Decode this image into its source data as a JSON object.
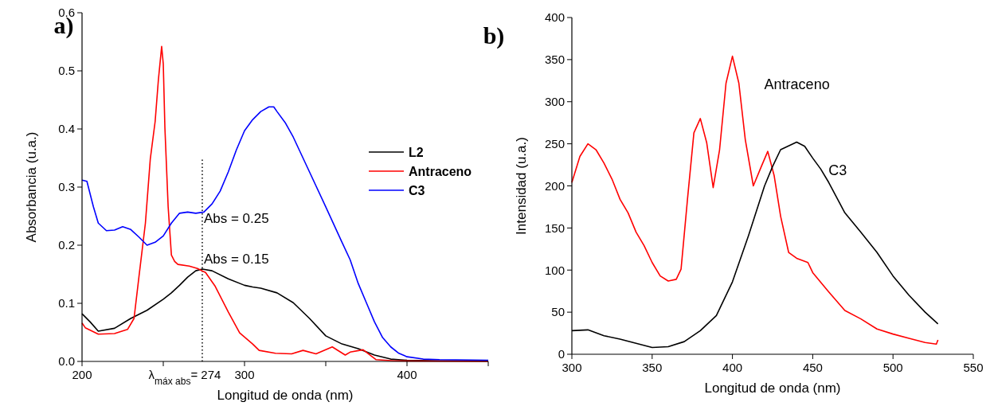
{
  "chart_data": [
    {
      "type": "line",
      "title": "a)",
      "xlabel": "Longitud de onda (nm)",
      "ylabel": "Absorbancia (u.a.)",
      "xlim": [
        200,
        450
      ],
      "xticks": [
        200,
        {
          "value": 250,
          "label": null
        },
        300,
        {
          "value": 350,
          "label": null
        },
        400,
        {
          "value": 450,
          "label": null
        }
      ],
      "ylim": [
        0,
        0.6
      ],
      "yticks": [
        {
          "value": 0,
          "label": "0.0"
        },
        0.1,
        0.2,
        0.3,
        0.4,
        0.5,
        0.6
      ],
      "grid": false,
      "legend": "right",
      "line_style": "solid",
      "ref_lines": [
        {
          "axis": "x",
          "value": 274,
          "label": "λ$_{máx abs}$= 274",
          "line_style": "dotted",
          "color": "#000000"
        }
      ],
      "annotations": [
        {
          "text": "Abs = 0.25",
          "x": 274,
          "y": 0.25
        },
        {
          "text": "Abs = 0.15",
          "x": 274,
          "y": 0.18
        }
      ],
      "series": [
        {
          "name": "L2",
          "color": "#000000",
          "x": [
            200,
            205,
            210,
            220,
            230,
            240,
            250,
            255,
            260,
            265,
            270,
            274,
            280,
            290,
            300,
            305,
            310,
            320,
            330,
            340,
            350,
            360,
            370,
            380,
            390,
            400,
            420,
            450
          ],
          "values": [
            0.082,
            0.068,
            0.052,
            0.057,
            0.074,
            0.088,
            0.107,
            0.118,
            0.131,
            0.145,
            0.156,
            0.159,
            0.156,
            0.142,
            0.131,
            0.128,
            0.126,
            0.118,
            0.101,
            0.074,
            0.044,
            0.03,
            0.022,
            0.011,
            0.004,
            0.002,
            0.001,
            0.001
          ]
        },
        {
          "name": "Antraceno",
          "color": "#ff0000",
          "x": [
            200,
            202,
            210,
            220,
            228,
            232,
            235,
            239,
            242,
            245,
            247,
            249,
            250,
            251,
            253,
            255,
            257,
            259,
            266,
            271,
            276,
            282,
            290,
            297,
            305,
            309,
            319,
            329,
            336,
            344,
            354,
            362,
            365,
            373,
            381,
            392,
            450
          ],
          "values": [
            0.066,
            0.058,
            0.047,
            0.048,
            0.055,
            0.074,
            0.145,
            0.238,
            0.348,
            0.413,
            0.485,
            0.542,
            0.512,
            0.402,
            0.266,
            0.183,
            0.172,
            0.167,
            0.164,
            0.16,
            0.153,
            0.129,
            0.085,
            0.049,
            0.03,
            0.019,
            0.014,
            0.013,
            0.019,
            0.013,
            0.025,
            0.011,
            0.016,
            0.02,
            0.003,
            0.001,
            0
          ]
        },
        {
          "name": "C3",
          "color": "#0000ff",
          "x": [
            200,
            203,
            207,
            210,
            215,
            220,
            225,
            230,
            235,
            240,
            245,
            250,
            255,
            260,
            265,
            270,
            275,
            280,
            285,
            290,
            295,
            300,
            305,
            310,
            315,
            318,
            320,
            325,
            330,
            340,
            350,
            360,
            365,
            370,
            375,
            380,
            385,
            390,
            395,
            400,
            410,
            420,
            450
          ],
          "values": [
            0.312,
            0.31,
            0.266,
            0.238,
            0.225,
            0.226,
            0.232,
            0.227,
            0.214,
            0.2,
            0.205,
            0.216,
            0.238,
            0.255,
            0.257,
            0.255,
            0.257,
            0.271,
            0.293,
            0.326,
            0.364,
            0.397,
            0.416,
            0.43,
            0.438,
            0.438,
            0.43,
            0.411,
            0.386,
            0.326,
            0.266,
            0.205,
            0.175,
            0.134,
            0.101,
            0.068,
            0.041,
            0.025,
            0.014,
            0.008,
            0.004,
            0.003,
            0.002
          ]
        }
      ]
    },
    {
      "type": "line",
      "title": "b)",
      "xlabel": "Longitud de onda (nm)",
      "ylabel": "Intensidad (u.a.)",
      "xlim": [
        300,
        550
      ],
      "xticks": [
        300,
        350,
        400,
        450,
        500,
        550
      ],
      "ylim": [
        0,
        400
      ],
      "yticks": [
        0,
        50,
        100,
        150,
        200,
        250,
        300,
        350,
        400
      ],
      "grid": false,
      "legend": false,
      "line_style": "solid",
      "series": [
        {
          "name": "Antraceno",
          "color": "#ff0000",
          "x": [
            300,
            305,
            310,
            315,
            320,
            325,
            330,
            335,
            340,
            345,
            350,
            355,
            360,
            365,
            368,
            372,
            376,
            380,
            384,
            388,
            392,
            396,
            400,
            404,
            408,
            413,
            418,
            422,
            426,
            430,
            435,
            440,
            447,
            450,
            460,
            470,
            480,
            490,
            500,
            510,
            520,
            527,
            528
          ],
          "values": [
            204,
            235,
            250,
            243,
            227,
            208,
            184,
            168,
            145,
            129,
            109,
            93,
            87,
            89,
            101,
            184,
            263,
            280,
            251,
            198,
            243,
            322,
            354,
            322,
            255,
            200,
            223,
            241,
            212,
            164,
            121,
            114,
            109,
            97,
            74,
            52,
            42,
            30,
            24,
            19,
            14,
            12,
            17
          ]
        },
        {
          "name": "C3",
          "color": "#000000",
          "x": [
            300,
            310,
            320,
            330,
            340,
            350,
            360,
            370,
            380,
            390,
            400,
            410,
            420,
            425,
            430,
            440,
            445,
            450,
            455,
            460,
            470,
            480,
            490,
            500,
            510,
            520,
            528
          ],
          "values": [
            28,
            29,
            22,
            18,
            13,
            8,
            9,
            15,
            28,
            46,
            86,
            141,
            200,
            223,
            243,
            252,
            247,
            233,
            220,
            204,
            168,
            145,
            121,
            93,
            70,
            50,
            36
          ]
        }
      ]
    }
  ]
}
